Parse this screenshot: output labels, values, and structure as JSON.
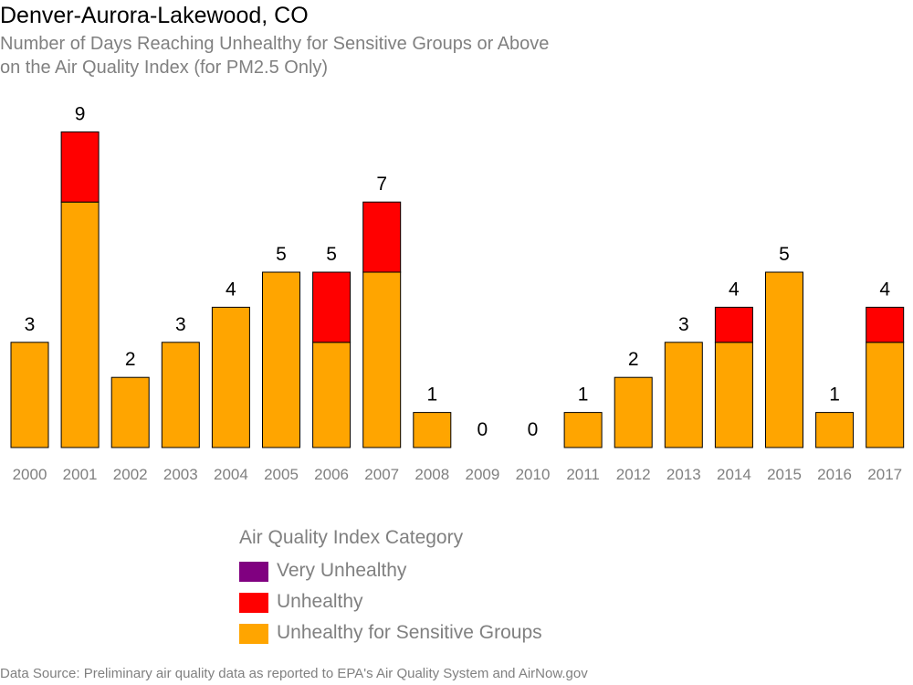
{
  "title": "Denver-Aurora-Lakewood, CO",
  "subtitle_line1": "Number of Days Reaching Unhealthy for Sensitive Groups or Above",
  "subtitle_line2": "on the Air Quality Index (for PM2.5 Only)",
  "legend": {
    "title": "Air Quality Index Category",
    "items": [
      {
        "label": "Very Unhealthy",
        "color": "#800080"
      },
      {
        "label": "Unhealthy",
        "color": "#ff0000"
      },
      {
        "label": "Unhealthy for Sensitive Groups",
        "color": "#ffa500"
      }
    ]
  },
  "source": "Data Source: Preliminary air quality data as reported to EPA's Air Quality System and AirNow.gov",
  "chart_data": {
    "type": "bar",
    "stacked": true,
    "categories": [
      "2000",
      "2001",
      "2002",
      "2003",
      "2004",
      "2005",
      "2006",
      "2007",
      "2008",
      "2009",
      "2010",
      "2011",
      "2012",
      "2013",
      "2014",
      "2015",
      "2016",
      "2017"
    ],
    "series": [
      {
        "name": "Unhealthy for Sensitive Groups",
        "color": "#ffa500",
        "values": [
          3,
          7,
          2,
          3,
          4,
          5,
          3,
          5,
          1,
          0,
          0,
          1,
          2,
          3,
          3,
          5,
          1,
          3
        ]
      },
      {
        "name": "Unhealthy",
        "color": "#ff0000",
        "values": [
          0,
          2,
          0,
          0,
          0,
          0,
          2,
          2,
          0,
          0,
          0,
          0,
          0,
          0,
          1,
          0,
          0,
          1
        ]
      },
      {
        "name": "Very Unhealthy",
        "color": "#800080",
        "values": [
          0,
          0,
          0,
          0,
          0,
          0,
          0,
          0,
          0,
          0,
          0,
          0,
          0,
          0,
          0,
          0,
          0,
          0
        ]
      }
    ],
    "totals": [
      3,
      9,
      2,
      3,
      4,
      5,
      5,
      7,
      1,
      0,
      0,
      1,
      2,
      3,
      4,
      5,
      1,
      4
    ],
    "ylim": [
      0,
      9
    ],
    "grid": false,
    "legend_position": "bottom"
  }
}
